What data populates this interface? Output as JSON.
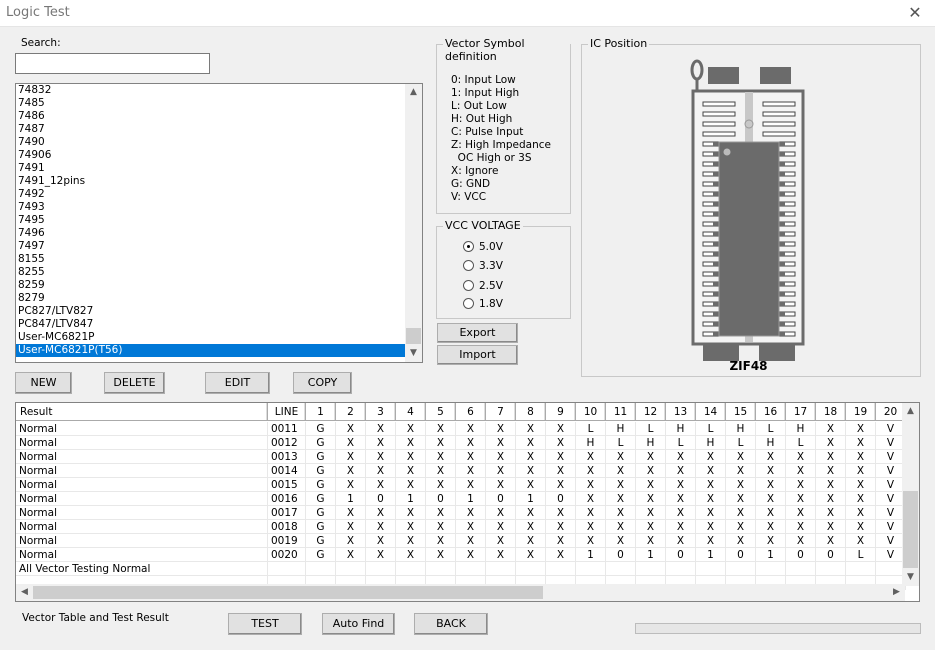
{
  "window": {
    "title": "Logic Test",
    "close_icon": "close-icon"
  },
  "search": {
    "label": "Search:",
    "value": "",
    "placeholder": ""
  },
  "device_list": {
    "items": [
      "74832",
      "7485",
      "7486",
      "7487",
      "7490",
      "74906",
      "7491",
      "7491_12pins",
      "7492",
      "7493",
      "7495",
      "7496",
      "7497",
      "8155",
      "8255",
      "8259",
      "8279",
      "PC827/LTV827",
      "PC847/LTV847",
      "User-MC6821P",
      "User-MC6821P(T56)"
    ],
    "selected": "User-MC6821P(T56)"
  },
  "list_buttons": {
    "new": "NEW",
    "delete": "DELETE",
    "edit": "EDIT",
    "copy": "COPY"
  },
  "vector_symbols": {
    "title": "Vector Symbol definition",
    "lines": [
      "0: Input Low",
      "1: Input High",
      "L: Out Low",
      "H: Out High",
      "C: Pulse Input",
      "Z: High Impedance",
      "  OC High or 3S",
      "X: Ignore",
      "G: GND",
      "V: VCC"
    ]
  },
  "vcc": {
    "title": "VCC VOLTAGE",
    "options": [
      "5.0V",
      "3.3V",
      "2.5V",
      "1.8V"
    ],
    "selected": "5.0V"
  },
  "io_buttons": {
    "export": "Export",
    "import": "Import"
  },
  "ic_position": {
    "title": "IC Position",
    "socket": "ZIF48",
    "socket_pins_per_side": 24,
    "chip_pins": 40,
    "colors": {
      "chip": "#6b6b6b",
      "socket": "#6b6b6b"
    }
  },
  "table": {
    "columns": [
      "Result",
      "LINE",
      "1",
      "2",
      "3",
      "4",
      "5",
      "6",
      "7",
      "8",
      "9",
      "10",
      "11",
      "12",
      "13",
      "14",
      "15",
      "16",
      "17",
      "18",
      "19",
      "20"
    ],
    "rows": [
      [
        "Normal",
        "0011",
        "G",
        "X",
        "X",
        "X",
        "X",
        "X",
        "X",
        "X",
        "X",
        "L",
        "H",
        "L",
        "H",
        "L",
        "H",
        "L",
        "H",
        "X",
        "X",
        "V"
      ],
      [
        "Normal",
        "0012",
        "G",
        "X",
        "X",
        "X",
        "X",
        "X",
        "X",
        "X",
        "X",
        "H",
        "L",
        "H",
        "L",
        "H",
        "L",
        "H",
        "L",
        "X",
        "X",
        "V"
      ],
      [
        "Normal",
        "0013",
        "G",
        "X",
        "X",
        "X",
        "X",
        "X",
        "X",
        "X",
        "X",
        "X",
        "X",
        "X",
        "X",
        "X",
        "X",
        "X",
        "X",
        "X",
        "X",
        "V"
      ],
      [
        "Normal",
        "0014",
        "G",
        "X",
        "X",
        "X",
        "X",
        "X",
        "X",
        "X",
        "X",
        "X",
        "X",
        "X",
        "X",
        "X",
        "X",
        "X",
        "X",
        "X",
        "X",
        "V"
      ],
      [
        "Normal",
        "0015",
        "G",
        "X",
        "X",
        "X",
        "X",
        "X",
        "X",
        "X",
        "X",
        "X",
        "X",
        "X",
        "X",
        "X",
        "X",
        "X",
        "X",
        "X",
        "X",
        "V"
      ],
      [
        "Normal",
        "0016",
        "G",
        "1",
        "0",
        "1",
        "0",
        "1",
        "0",
        "1",
        "0",
        "X",
        "X",
        "X",
        "X",
        "X",
        "X",
        "X",
        "X",
        "X",
        "X",
        "V"
      ],
      [
        "Normal",
        "0017",
        "G",
        "X",
        "X",
        "X",
        "X",
        "X",
        "X",
        "X",
        "X",
        "X",
        "X",
        "X",
        "X",
        "X",
        "X",
        "X",
        "X",
        "X",
        "X",
        "V"
      ],
      [
        "Normal",
        "0018",
        "G",
        "X",
        "X",
        "X",
        "X",
        "X",
        "X",
        "X",
        "X",
        "X",
        "X",
        "X",
        "X",
        "X",
        "X",
        "X",
        "X",
        "X",
        "X",
        "V"
      ],
      [
        "Normal",
        "0019",
        "G",
        "X",
        "X",
        "X",
        "X",
        "X",
        "X",
        "X",
        "X",
        "X",
        "X",
        "X",
        "X",
        "X",
        "X",
        "X",
        "X",
        "X",
        "X",
        "V"
      ],
      [
        "Normal",
        "0020",
        "G",
        "X",
        "X",
        "X",
        "X",
        "X",
        "X",
        "X",
        "X",
        "1",
        "0",
        "1",
        "0",
        "1",
        "0",
        "1",
        "0",
        "0",
        "L",
        "V"
      ],
      [
        "All Vector Testing Normal",
        "",
        "",
        "",
        "",
        "",
        "",
        "",
        "",
        "",
        "",
        "",
        "",
        "",
        "",
        "",
        "",
        "",
        "",
        "",
        "",
        ""
      ],
      [
        "",
        "",
        "",
        "",
        "",
        "",
        "",
        "",
        "",
        "",
        "",
        "",
        "",
        "",
        "",
        "",
        "",
        "",
        "",
        "",
        "",
        ""
      ]
    ]
  },
  "footer": {
    "label": "Vector Table and Test Result",
    "test": "TEST",
    "auto_find": "Auto Find",
    "back": "BACK",
    "progress": 0
  }
}
